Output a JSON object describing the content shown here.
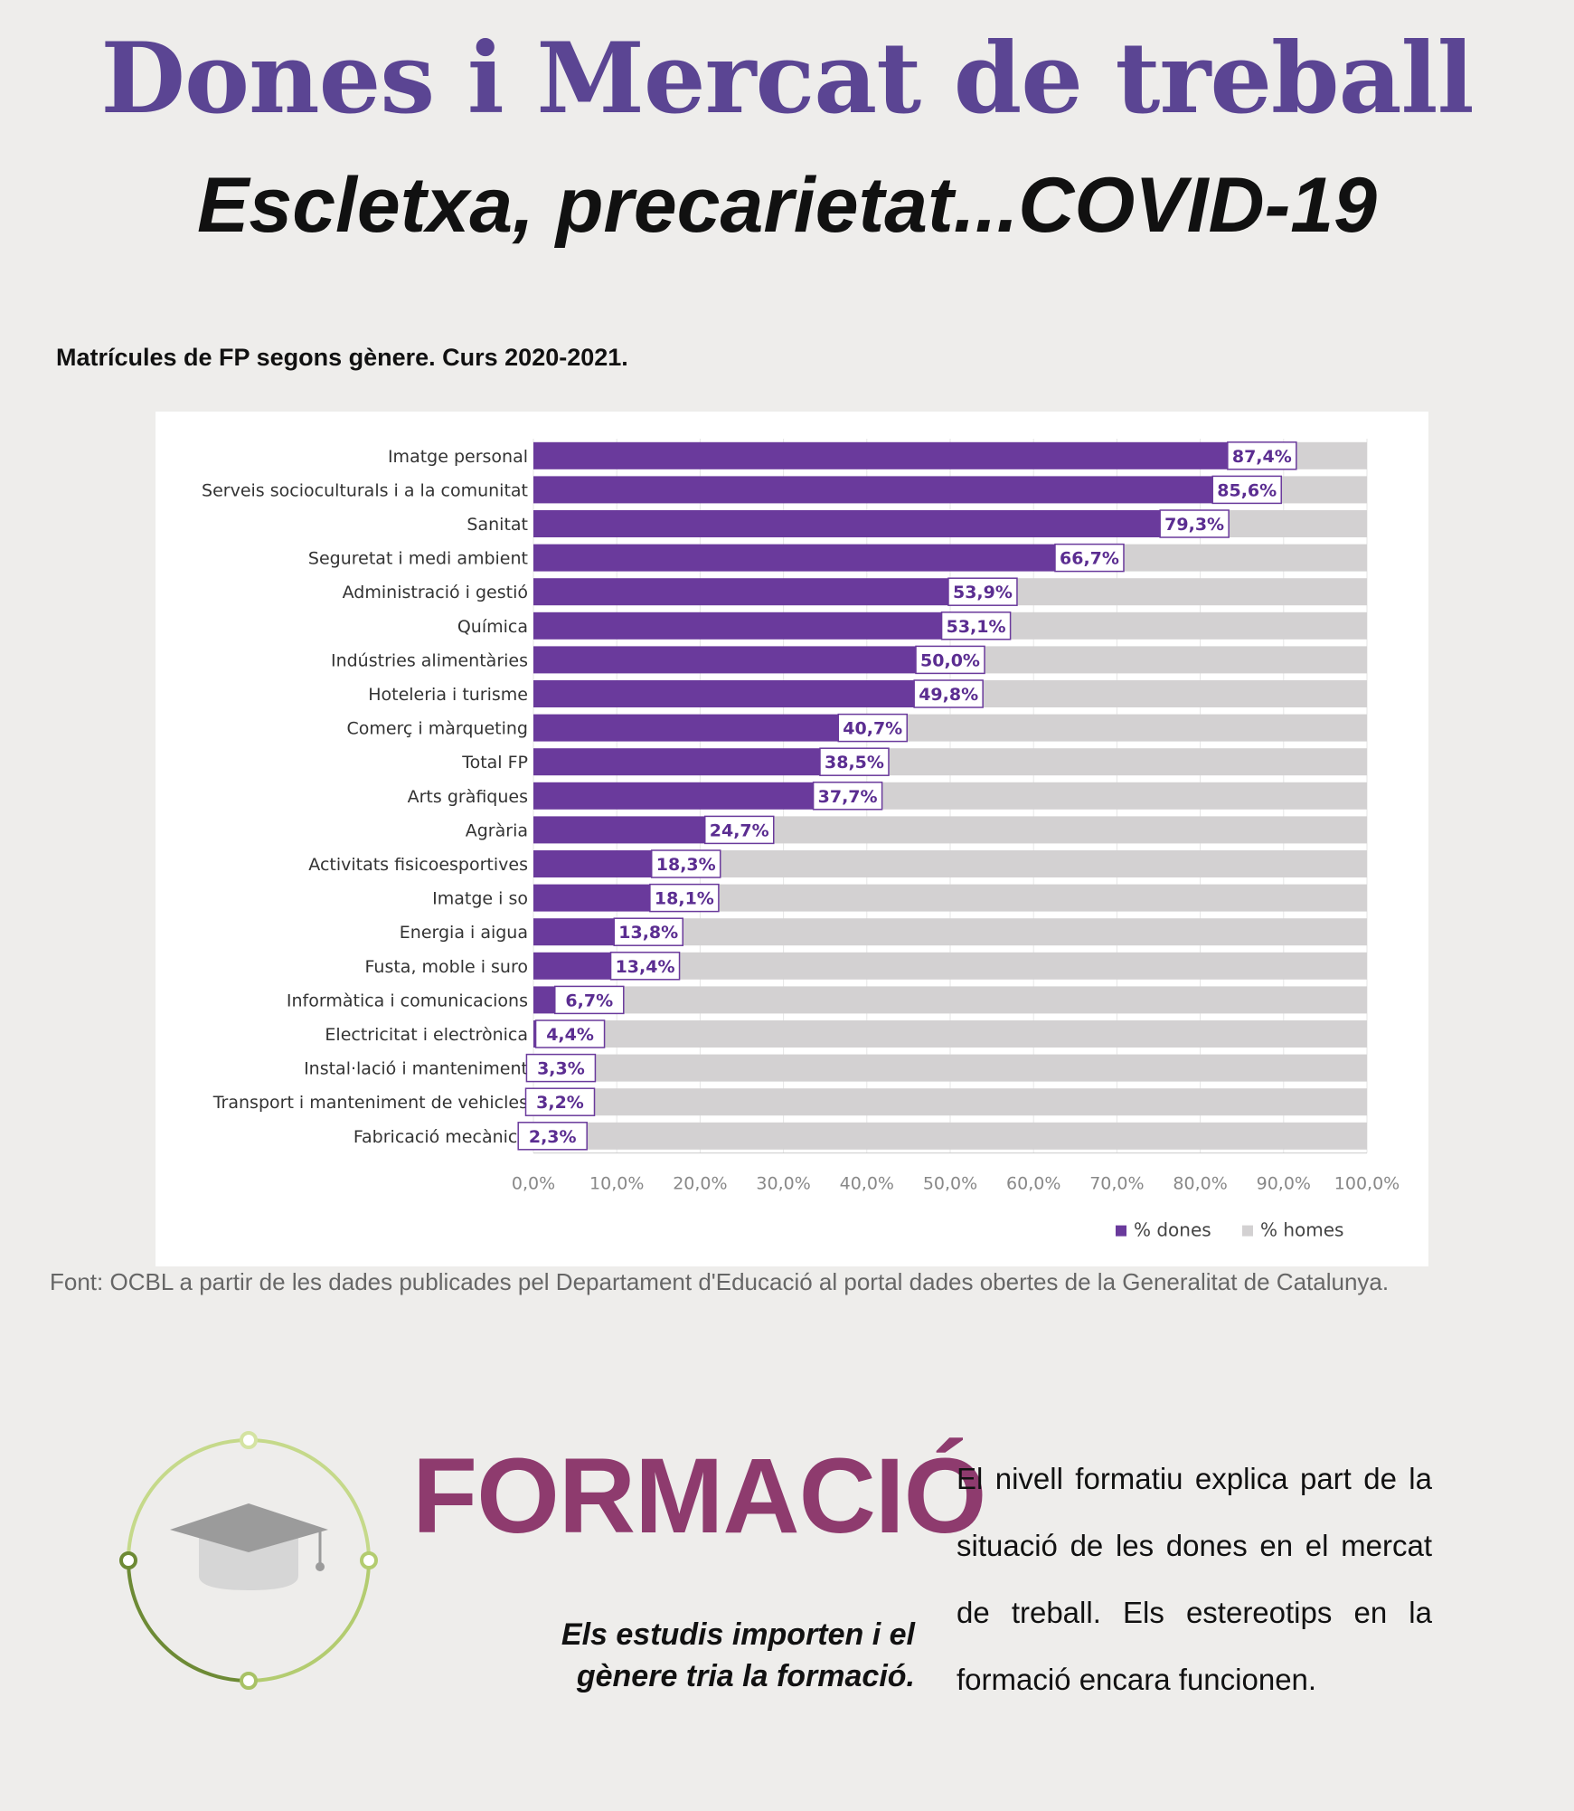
{
  "header": {
    "title": "Dones i Mercat de treball",
    "subtitle": "Escletxa, precarietat...COVID-19"
  },
  "chart_heading": "Matrícules de FP segons gènere. Curs 2020-2021.",
  "chart_data": {
    "type": "bar",
    "orientation": "horizontal",
    "stacked": true,
    "categories": [
      "Imatge personal",
      "Serveis socioculturals i a la comunitat",
      "Sanitat",
      "Seguretat i medi ambient",
      "Administració i gestió",
      "Química",
      "Indústries alimentàries",
      "Hoteleria i turisme",
      "Comerç i màrqueting",
      "Total FP",
      "Arts gràfiques",
      "Agrària",
      "Activitats fisicoesportives",
      "Imatge i so",
      "Energia i aigua",
      "Fusta, moble i suro",
      "Informàtica i comunicacions",
      "Electricitat i electrònica",
      "Instal·lació i manteniment",
      "Transport i manteniment de vehicles",
      "Fabricació mecànica"
    ],
    "series": [
      {
        "name": "% dones",
        "color": "#6a3a9c",
        "values": [
          87.4,
          85.6,
          79.3,
          66.7,
          53.9,
          53.1,
          50.0,
          49.8,
          40.7,
          38.5,
          37.7,
          24.7,
          18.3,
          18.1,
          13.8,
          13.4,
          6.7,
          4.4,
          3.3,
          3.2,
          2.3
        ],
        "labels": [
          "87,4%",
          "85,6%",
          "79,3%",
          "66,7%",
          "53,9%",
          "53,1%",
          "50,0%",
          "49,8%",
          "40,7%",
          "38,5%",
          "37,7%",
          "24,7%",
          "18,3%",
          "18,1%",
          "13,8%",
          "13,4%",
          "6,7%",
          "4,4%",
          "3,3%",
          "3,2%",
          "2,3%"
        ]
      },
      {
        "name": "% homes",
        "color": "#d3d1d2",
        "values": [
          12.6,
          14.4,
          20.7,
          33.3,
          46.1,
          46.9,
          50.0,
          50.2,
          59.3,
          61.5,
          62.3,
          75.3,
          81.7,
          81.9,
          86.2,
          86.6,
          93.3,
          95.6,
          96.7,
          96.8,
          97.7
        ]
      }
    ],
    "xlim": [
      0,
      100
    ],
    "x_ticks": [
      0,
      10,
      20,
      30,
      40,
      50,
      60,
      70,
      80,
      90,
      100
    ],
    "x_tick_labels": [
      "0,0%",
      "10,0%",
      "20,0%",
      "30,0%",
      "40,0%",
      "50,0%",
      "60,0%",
      "70,0%",
      "80,0%",
      "90,0%",
      "100,0%"
    ],
    "grid": true,
    "legend": "bottom-right",
    "title": "",
    "xlabel": "",
    "ylabel": ""
  },
  "source": "Font: OCBL a partir de les dades publicades pel Departament d'Educació al portal dades obertes de la Generalitat de Catalunya.",
  "section": {
    "title": "FORMACIÓ",
    "tagline_1": "Els estudis importen i el",
    "tagline_2": "gènere tria la formació.",
    "body": "El nivell formatiu explica part de la situació de les dones en el mercat de treball. Els estereotips en la formació encara funcionen.",
    "icon": "graduation-cap-icon"
  },
  "colors": {
    "title": "#5b4593",
    "section_title": "#8e3b6e",
    "icon_ring_light": "#c5d98a",
    "icon_ring_dark": "#6d8a35"
  }
}
